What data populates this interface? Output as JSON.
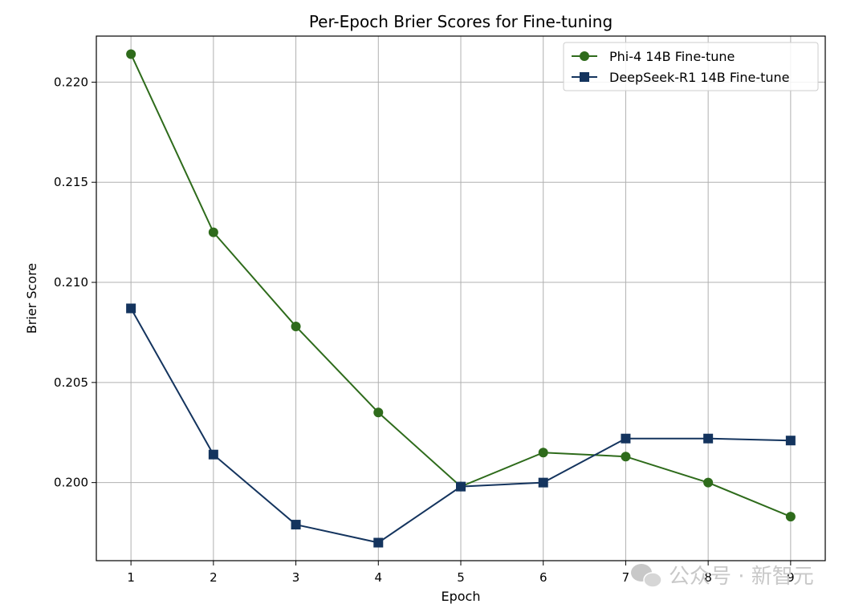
{
  "chart_data": {
    "type": "line",
    "title": "Per-Epoch Brier Scores for Fine-tuning",
    "xlabel": "Epoch",
    "ylabel": "Brier Score",
    "x": [
      1,
      2,
      3,
      4,
      5,
      6,
      7,
      8,
      9
    ],
    "xlim": [
      0.58,
      9.42
    ],
    "ylim": [
      0.1961,
      0.2223
    ],
    "xticks": [
      "1",
      "2",
      "3",
      "4",
      "5",
      "6",
      "7",
      "8",
      "9"
    ],
    "yticks": [
      {
        "value": 0.2,
        "label": "0.200"
      },
      {
        "value": 0.205,
        "label": "0.205"
      },
      {
        "value": 0.21,
        "label": "0.210"
      },
      {
        "value": 0.215,
        "label": "0.215"
      },
      {
        "value": 0.22,
        "label": "0.220"
      }
    ],
    "grid": true,
    "legend_position": "top-right",
    "series": [
      {
        "name": "Phi-4 14B Fine-tune",
        "color": "#2e6b1b",
        "marker": "circle",
        "values": [
          0.2214,
          0.2125,
          0.2078,
          0.2035,
          0.1998,
          0.2015,
          0.2013,
          0.2,
          0.1983
        ]
      },
      {
        "name": "DeepSeek-R1 14B Fine-tune",
        "color": "#14345e",
        "marker": "square",
        "values": [
          0.2087,
          0.2014,
          0.1979,
          0.197,
          0.1998,
          0.2,
          0.2022,
          0.2022,
          0.2021
        ]
      }
    ]
  },
  "watermark": {
    "text": "公众号 · 新智元",
    "icon": "wechat-icon"
  }
}
